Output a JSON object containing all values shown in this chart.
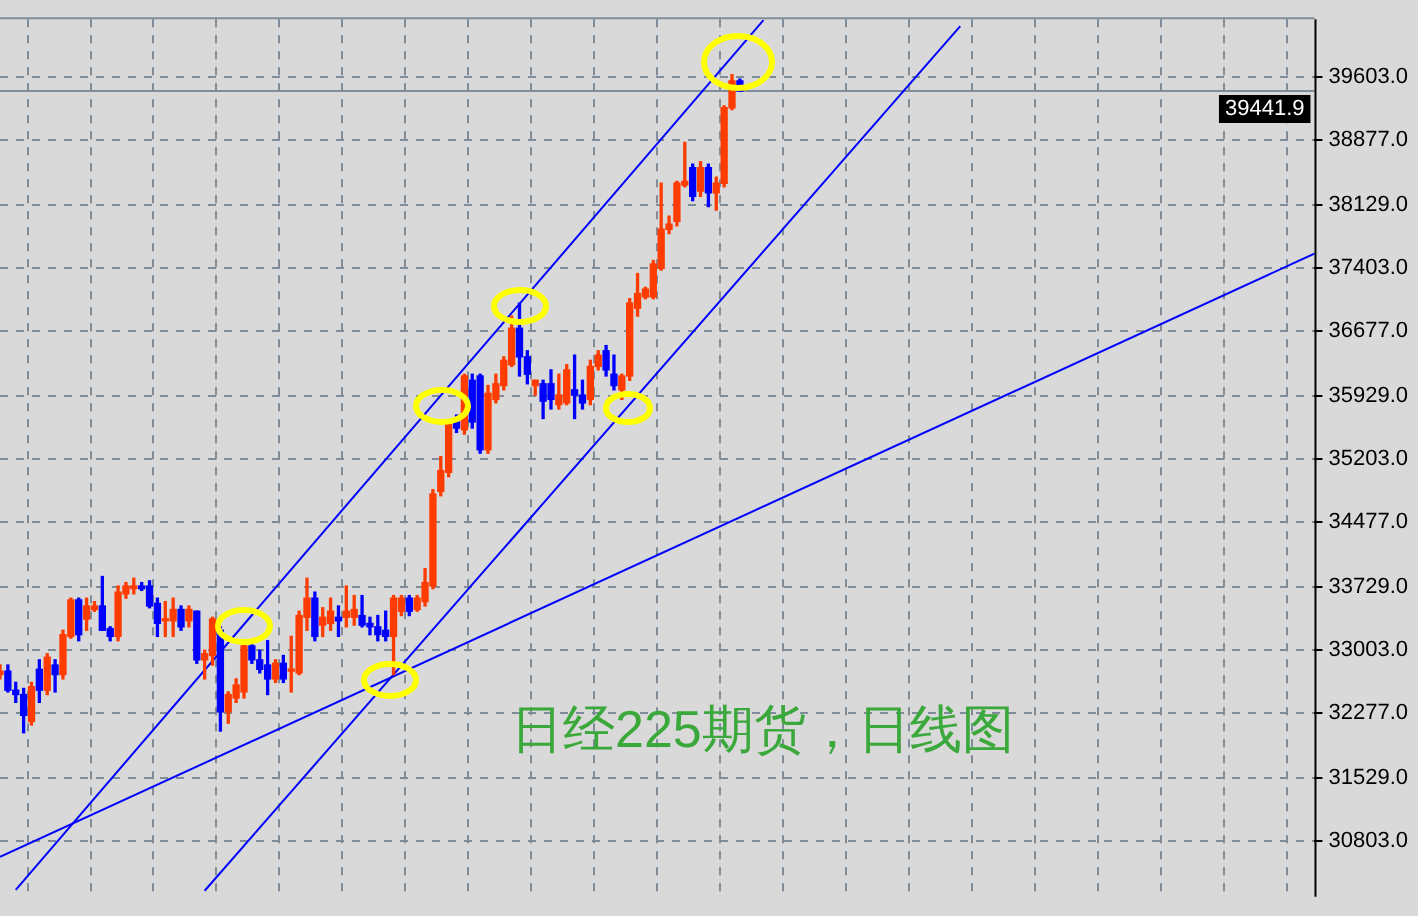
{
  "chart_data": {
    "type": "candlestick",
    "title": "日经225期货，日线图",
    "categories": [
      null,
      null,
      null,
      null,
      null,
      null,
      null,
      null,
      null,
      null,
      null,
      null,
      null,
      null,
      null,
      null,
      null,
      null,
      null,
      null,
      null,
      null,
      null,
      null,
      null,
      null,
      null,
      null,
      null,
      null,
      null,
      null,
      null,
      null,
      null,
      null,
      null,
      null,
      null,
      null,
      null,
      null,
      null,
      null,
      null,
      null,
      null,
      null,
      null,
      null,
      null,
      null,
      null,
      null,
      null,
      null,
      null,
      null,
      null,
      null,
      null,
      null,
      null,
      null,
      null,
      null,
      null,
      null,
      null,
      null,
      null,
      null,
      null,
      null,
      null,
      null,
      null,
      null,
      null,
      null,
      null,
      null,
      null,
      null,
      null,
      null,
      null,
      null,
      null,
      null,
      null,
      null,
      null,
      null,
      null,
      null,
      null,
      null,
      null,
      null,
      null,
      null,
      null,
      null,
      null,
      null,
      null,
      null,
      null,
      null,
      null,
      null,
      null,
      null,
      null,
      null,
      null,
      null,
      null,
      null,
      null,
      null,
      null,
      null,
      null,
      null,
      null,
      null,
      null,
      null,
      null,
      null,
      null,
      null,
      null,
      null,
      null,
      null,
      null,
      null,
      null,
      null,
      null,
      null,
      null,
      null,
      null,
      null,
      null,
      null,
      null,
      null,
      null,
      null,
      null,
      null,
      null,
      null,
      null,
      null,
      null,
      null,
      null,
      null,
      null,
      null,
      null,
      null
    ],
    "series": [
      {
        "ohlc": [
          [
            32720,
            32830,
            32670,
            32760
          ],
          [
            32760,
            32830,
            32520,
            32540
          ],
          [
            32540,
            32630,
            32400,
            32490
          ],
          [
            32490,
            32560,
            32050,
            32250
          ],
          [
            32180,
            32630,
            32140,
            32580
          ],
          [
            32780,
            32890,
            32400,
            32540
          ],
          [
            32540,
            32960,
            32490,
            32920
          ],
          [
            32830,
            32890,
            32520,
            32720
          ],
          [
            32720,
            33230,
            32670,
            33180
          ],
          [
            33160,
            33600,
            33140,
            33580
          ],
          [
            33580,
            33600,
            33110,
            33180
          ],
          [
            33360,
            33600,
            33230,
            33510
          ],
          [
            33470,
            33560,
            33450,
            33510
          ],
          [
            33510,
            33850,
            33230,
            33230
          ],
          [
            33250,
            33270,
            33110,
            33160
          ],
          [
            33160,
            33740,
            33110,
            33670
          ],
          [
            33650,
            33780,
            33600,
            33740
          ],
          [
            33710,
            33830,
            33650,
            33740
          ],
          [
            33740,
            33780,
            33690,
            33710
          ],
          [
            33740,
            33800,
            33490,
            33510
          ],
          [
            33540,
            33600,
            33160,
            33310
          ],
          [
            33340,
            33560,
            33160,
            33360
          ],
          [
            33340,
            33600,
            33160,
            33470
          ],
          [
            33470,
            33510,
            33230,
            33270
          ],
          [
            33340,
            33510,
            33270,
            33470
          ],
          [
            33450,
            33450,
            32850,
            32890
          ],
          [
            32890,
            33000,
            32670,
            32960
          ],
          [
            32940,
            33380,
            32830,
            33360
          ],
          [
            33230,
            33270,
            32070,
            32290
          ],
          [
            32290,
            32520,
            32160,
            32490
          ],
          [
            32450,
            32670,
            32400,
            32600
          ],
          [
            32520,
            33070,
            32450,
            33050
          ],
          [
            33050,
            33110,
            32850,
            32890
          ],
          [
            32890,
            33000,
            32740,
            32780
          ],
          [
            32830,
            33110,
            32490,
            32670
          ],
          [
            32670,
            32890,
            32630,
            32850
          ],
          [
            32850,
            32940,
            32630,
            32670
          ],
          [
            32760,
            33160,
            32520,
            32780
          ],
          [
            32740,
            33450,
            32720,
            33400
          ],
          [
            33380,
            33830,
            33230,
            33600
          ],
          [
            33600,
            33670,
            33110,
            33160
          ],
          [
            33290,
            33490,
            33160,
            33380
          ],
          [
            33310,
            33600,
            33230,
            33450
          ],
          [
            33380,
            33510,
            33160,
            33340
          ],
          [
            33380,
            33740,
            33270,
            33450
          ],
          [
            33380,
            33630,
            33290,
            33470
          ],
          [
            33400,
            33630,
            33270,
            33290
          ],
          [
            33310,
            33380,
            33180,
            33270
          ],
          [
            33270,
            33400,
            33110,
            33180
          ],
          [
            33230,
            33450,
            33110,
            33160
          ],
          [
            33160,
            33630,
            32720,
            33600
          ],
          [
            33450,
            33630,
            33400,
            33600
          ],
          [
            33600,
            33630,
            33400,
            33450
          ],
          [
            33470,
            33630,
            33450,
            33600
          ],
          [
            33560,
            33940,
            33510,
            33780
          ],
          [
            33740,
            34850,
            33710,
            34800
          ],
          [
            34830,
            35230,
            34780,
            35070
          ],
          [
            35050,
            35630,
            35000,
            35600
          ],
          [
            35630,
            35710,
            35510,
            35560
          ],
          [
            35540,
            36180,
            35490,
            36160
          ],
          [
            36110,
            36180,
            35560,
            35630
          ],
          [
            36160,
            36180,
            35270,
            35310
          ],
          [
            35310,
            36050,
            35270,
            35960
          ],
          [
            35890,
            36180,
            35850,
            36070
          ],
          [
            36050,
            36380,
            36000,
            36340
          ],
          [
            36290,
            36850,
            36270,
            36710
          ],
          [
            36710,
            37000,
            36160,
            36380
          ],
          [
            36380,
            36450,
            36070,
            36180
          ],
          [
            36050,
            36110,
            35940,
            36110
          ],
          [
            36070,
            36110,
            35670,
            35870
          ],
          [
            36070,
            36230,
            35780,
            35890
          ],
          [
            35830,
            36180,
            35780,
            35940
          ],
          [
            35850,
            36290,
            35830,
            36230
          ],
          [
            36000,
            36400,
            35670,
            35940
          ],
          [
            35940,
            36110,
            35780,
            35850
          ],
          [
            35890,
            36340,
            35830,
            36270
          ],
          [
            36270,
            36450,
            36230,
            36400
          ],
          [
            36450,
            36510,
            36160,
            36230
          ],
          [
            36180,
            36400,
            36000,
            36050
          ],
          [
            36000,
            36180,
            35890,
            36160
          ],
          [
            36160,
            37050,
            36110,
            37000
          ],
          [
            36940,
            37340,
            36850,
            37110
          ],
          [
            37070,
            37180,
            37050,
            37160
          ],
          [
            37070,
            37490,
            37050,
            37450
          ],
          [
            37400,
            38380,
            37380,
            37850
          ],
          [
            37850,
            38000,
            37800,
            37910
          ],
          [
            37940,
            38400,
            37890,
            38380
          ],
          [
            38360,
            38850,
            38340,
            38400
          ],
          [
            38560,
            38600,
            38180,
            38230
          ],
          [
            38290,
            38630,
            38230,
            38560
          ],
          [
            38560,
            38600,
            38110,
            38270
          ],
          [
            38270,
            38450,
            38070,
            38380
          ],
          [
            38380,
            39270,
            38340,
            39250
          ],
          [
            39250,
            39630,
            39230,
            39560
          ],
          [
            39560,
            39580,
            39441.9,
            39441.9
          ],
          null,
          null,
          null,
          null,
          null,
          null,
          null,
          null,
          null,
          null,
          null,
          null,
          null,
          null,
          null,
          null,
          null,
          null,
          null,
          null,
          null,
          null,
          null,
          null,
          null,
          null,
          null,
          null,
          null,
          null,
          null,
          null,
          null,
          null,
          null,
          null,
          null,
          null,
          null,
          null,
          null,
          null,
          null,
          null,
          null,
          null,
          null,
          null,
          null,
          null,
          null,
          null,
          null,
          null,
          null,
          null,
          null,
          null,
          null,
          null,
          null,
          null,
          null,
          null,
          null,
          null,
          null,
          null,
          null,
          null,
          null,
          null,
          null
        ],
        "colors": [
          "#ff3c00",
          "#0000ff",
          "#0000ff",
          "#0000ff",
          "#ff3c00",
          "#0000ff",
          "#ff3c00",
          "#0000ff",
          "#ff3c00",
          "#ff3c00",
          "#0000ff",
          "#ff3c00",
          "#ff3c00",
          "#0000ff",
          "#0000ff",
          "#ff3c00",
          "#ff3c00",
          "#ff3c00",
          "#0000ff",
          "#0000ff",
          "#0000ff",
          "#ff3c00",
          "#ff3c00",
          "#0000ff",
          "#ff3c00",
          "#0000ff",
          "#ff3c00",
          "#ff3c00",
          "#0000ff",
          "#ff3c00",
          "#ff3c00",
          "#ff3c00",
          "#0000ff",
          "#0000ff",
          "#0000ff",
          "#ff3c00",
          "#0000ff",
          "#ff3c00",
          "#ff3c00",
          "#ff3c00",
          "#0000ff",
          "#ff3c00",
          "#ff3c00",
          "#0000ff",
          "#ff3c00",
          "#ff3c00",
          "#0000ff",
          "#0000ff",
          "#0000ff",
          "#0000ff",
          "#ff3c00",
          "#ff3c00",
          "#0000ff",
          "#ff3c00",
          "#ff3c00",
          "#ff3c00",
          "#ff3c00",
          "#ff3c00",
          "#0000ff",
          "#ff3c00",
          "#0000ff",
          "#0000ff",
          "#ff3c00",
          "#ff3c00",
          "#ff3c00",
          "#ff3c00",
          "#0000ff",
          "#0000ff",
          "#ff3c00",
          "#0000ff",
          "#0000ff",
          "#ff3c00",
          "#ff3c00",
          "#0000ff",
          "#0000ff",
          "#ff3c00",
          "#ff3c00",
          "#0000ff",
          "#0000ff",
          "#ff3c00",
          "#ff3c00",
          "#ff3c00",
          "#ff3c00",
          "#ff3c00",
          "#ff3c00",
          "#ff3c00",
          "#ff3c00",
          "#ff3c00",
          "#0000ff",
          "#ff3c00",
          "#0000ff",
          "#ff3c00",
          "#ff3c00",
          "#ff3c00",
          "#0000ff",
          null,
          null,
          null,
          null,
          null,
          null,
          null,
          null,
          null,
          null,
          null,
          null,
          null,
          null,
          null,
          null,
          null,
          null,
          null,
          null,
          null,
          null,
          null,
          null,
          null,
          null,
          null,
          null,
          null,
          null,
          null,
          null,
          null,
          null,
          null,
          null,
          null,
          null,
          null,
          null,
          null,
          null,
          null,
          null,
          null,
          null,
          null,
          null,
          null,
          null,
          null,
          null,
          null,
          null,
          null,
          null,
          null,
          null,
          null,
          null,
          null,
          null,
          null,
          null,
          null,
          null,
          null,
          null,
          null,
          null,
          null,
          null,
          null
        ]
      },
      {
        "type": "line",
        "values": [
          null,
          null,
          30240,
          null,
          null,
          null,
          null,
          null,
          null,
          null,
          null,
          null,
          null,
          null,
          null,
          null,
          null,
          null,
          null,
          null,
          null,
          null,
          null,
          null,
          null,
          null,
          null,
          null,
          null,
          null,
          null,
          null,
          null,
          null,
          null,
          null,
          null,
          null,
          null,
          null,
          null,
          null,
          null,
          null,
          null,
          null,
          null,
          null,
          null,
          null,
          null,
          null,
          null,
          null,
          null,
          null,
          null,
          null,
          null,
          null,
          null,
          null,
          null,
          null,
          null,
          null,
          null,
          null,
          null,
          null,
          null,
          null,
          null,
          null,
          null,
          null,
          null,
          null,
          null,
          null,
          null,
          null,
          null,
          null,
          null,
          null,
          null,
          null,
          null,
          null,
          null,
          null,
          null,
          null,
          null,
          null,
          null,
          40260,
          null,
          null,
          null,
          null,
          null,
          null,
          null,
          null,
          null,
          null,
          null,
          null,
          null,
          null,
          null,
          null,
          null,
          null,
          null,
          null,
          null,
          null,
          null,
          null,
          null,
          null,
          null,
          null,
          null,
          null,
          null,
          null,
          null,
          null,
          null,
          null,
          null,
          null,
          null,
          null,
          null,
          null,
          null,
          null,
          null,
          null,
          null,
          null,
          null,
          null,
          null,
          null,
          null,
          null,
          null,
          null,
          null,
          null,
          null,
          null,
          null,
          null,
          null,
          null,
          null,
          null,
          null,
          null,
          null,
          null
        ],
        "color": "#0000ff"
      },
      {
        "type": "line",
        "values": [
          null,
          null,
          null,
          null,
          null,
          null,
          null,
          null,
          null,
          null,
          null,
          null,
          null,
          null,
          null,
          null,
          null,
          null,
          null,
          null,
          null,
          null,
          null,
          null,
          null,
          null,
          30230,
          null,
          null,
          null,
          null,
          null,
          null,
          null,
          null,
          null,
          null,
          null,
          null,
          null,
          null,
          null,
          null,
          null,
          null,
          null,
          null,
          null,
          null,
          null,
          null,
          null,
          null,
          null,
          null,
          null,
          null,
          null,
          null,
          null,
          null,
          null,
          null,
          null,
          null,
          null,
          null,
          null,
          null,
          null,
          null,
          null,
          null,
          null,
          null,
          null,
          null,
          null,
          null,
          null,
          null,
          null,
          null,
          null,
          null,
          null,
          null,
          null,
          null,
          null,
          null,
          null,
          null,
          null,
          null,
          null,
          null,
          null,
          null,
          null,
          null,
          null,
          null,
          null,
          null,
          null,
          null,
          null,
          null,
          null,
          null,
          null,
          null,
          null,
          null,
          null,
          null,
          null,
          null,
          null,
          null,
          null,
          40190,
          null,
          null,
          null,
          null,
          null,
          null,
          null,
          null,
          null,
          null,
          null,
          null,
          null,
          null,
          null,
          null,
          null,
          null,
          null,
          null,
          null,
          null,
          null,
          null,
          null,
          null,
          null,
          null,
          null,
          null,
          null,
          null,
          null,
          null,
          null,
          null,
          null,
          null,
          null,
          null,
          null,
          null,
          null,
          null,
          null
        ],
        "color": "#0000ff"
      },
      {
        "type": "line",
        "values": [
          30620,
          null,
          null,
          null,
          null,
          null,
          null,
          null,
          null,
          null,
          null,
          null,
          null,
          null,
          null,
          null,
          null,
          null,
          null,
          null,
          null,
          null,
          null,
          null,
          null,
          null,
          null,
          null,
          null,
          null,
          null,
          null,
          null,
          null,
          null,
          null,
          null,
          null,
          null,
          null,
          null,
          null,
          null,
          null,
          null,
          null,
          null,
          null,
          null,
          null,
          null,
          null,
          null,
          null,
          null,
          null,
          null,
          null,
          null,
          null,
          null,
          null,
          null,
          null,
          null,
          null,
          null,
          null,
          null,
          null,
          null,
          null,
          null,
          null,
          null,
          null,
          null,
          null,
          null,
          null,
          null,
          null,
          null,
          null,
          null,
          null,
          null,
          null,
          null,
          null,
          null,
          null,
          null,
          null,
          null,
          null,
          null,
          null,
          null,
          null,
          null,
          null,
          null,
          null,
          null,
          null,
          null,
          null,
          null,
          null,
          null,
          null,
          null,
          null,
          null,
          null,
          null,
          null,
          null,
          null,
          null,
          null,
          null,
          null,
          null,
          null,
          null,
          null,
          null,
          null,
          null,
          null,
          null,
          null,
          null,
          null,
          null,
          null,
          null,
          null,
          null,
          null,
          null,
          null,
          null,
          null,
          null,
          null,
          null,
          null,
          null,
          null,
          null,
          null,
          null,
          null,
          null,
          null,
          null,
          null,
          null,
          null,
          null,
          null,
          null,
          null,
          null,
          37570
        ],
        "color": "#0000ff"
      }
    ],
    "ylim": [
      30160,
      40270
    ],
    "yticks": [
      {
        "value": 30803,
        "label": "30803.0"
      },
      {
        "value": 31529,
        "label": "31529.0"
      },
      {
        "value": 32277,
        "label": "32277.0"
      },
      {
        "value": 33003,
        "label": "33003.0"
      },
      {
        "value": 33729,
        "label": "33729.0"
      },
      {
        "value": 34477,
        "label": "34477.0"
      },
      {
        "value": 35203,
        "label": "35203.0"
      },
      {
        "value": 35929,
        "label": "35929.0"
      },
      {
        "value": 36677,
        "label": "36677.0"
      },
      {
        "value": 37403,
        "label": "37403.0"
      },
      {
        "value": 38129,
        "label": "38129.0"
      },
      {
        "value": 38877,
        "label": "38877.0"
      },
      {
        "value": 39603,
        "label": "39603.0"
      }
    ],
    "tick_labels": "y",
    "grid": true,
    "marker": "none",
    "ref_lines": [
      {
        "axis": "y",
        "value": 39441.9,
        "label": "39441.9",
        "color": "#7f8c99"
      }
    ]
  }
}
